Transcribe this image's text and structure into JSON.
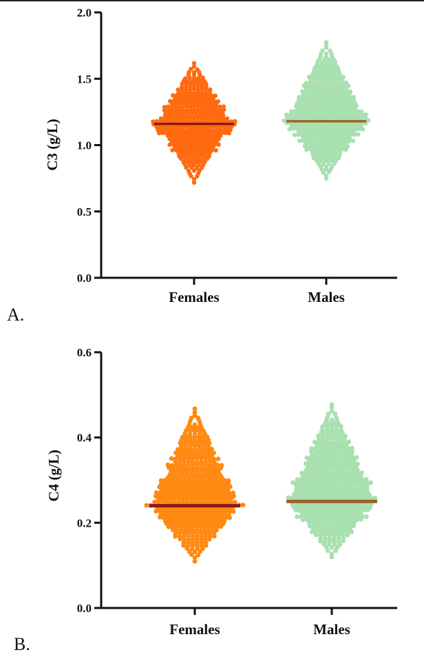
{
  "panels": [
    {
      "panel_label": "A.",
      "colors": {
        "Females": "#ff6a10",
        "Males": "#a8e0b0",
        "Females_median": "#8b1a1a",
        "Males_median": "#a0622a"
      }
    },
    {
      "panel_label": "B.",
      "colors": {
        "Females": "#ff8a12",
        "Males": "#a8e0b0",
        "Females_median": "#8b1a1a",
        "Males_median": "#a0622a"
      }
    }
  ],
  "chart_data": [
    {
      "type": "scatter",
      "subtype": "beeswarm",
      "ylabel": "C3 (g/L)",
      "categories": [
        "Females",
        "Males"
      ],
      "ylim": [
        0.0,
        2.0
      ],
      "yticks": [
        "0.0",
        "0.5",
        "1.0",
        "1.5",
        "2.0"
      ],
      "series": [
        {
          "name": "Females",
          "median": 1.16,
          "min": 0.72,
          "max": 1.62
        },
        {
          "name": "Males",
          "median": 1.18,
          "min": 0.75,
          "max": 1.79
        }
      ]
    },
    {
      "type": "scatter",
      "subtype": "beeswarm",
      "ylabel": "C4 (g/L)",
      "categories": [
        "Females",
        "Males"
      ],
      "ylim": [
        0.0,
        0.6
      ],
      "yticks": [
        "0.0",
        "0.2",
        "0.4",
        "0.6"
      ],
      "series": [
        {
          "name": "Females",
          "median": 0.24,
          "min": 0.11,
          "max": 0.47
        },
        {
          "name": "Males",
          "median": 0.25,
          "min": 0.12,
          "max": 0.48
        }
      ]
    }
  ]
}
